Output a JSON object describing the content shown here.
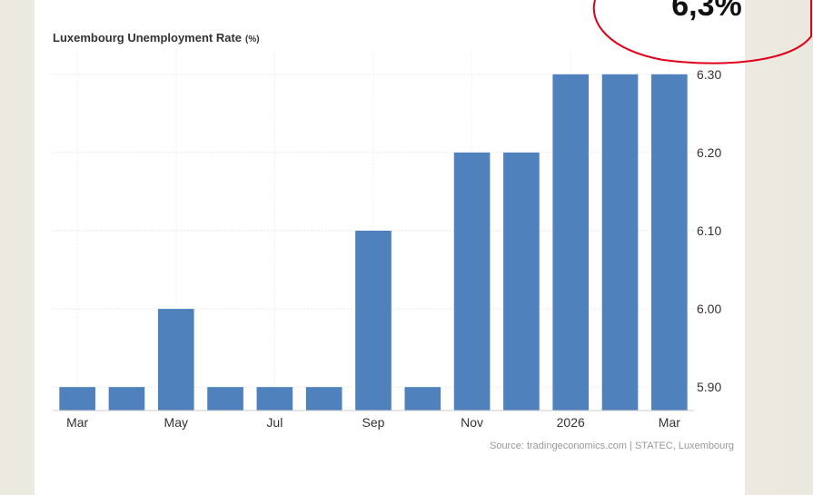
{
  "chart_data": {
    "type": "bar",
    "title": "Luxembourg Unemployment Rate",
    "title_unit": "(%)",
    "x": [
      "2025-03",
      "2025-04",
      "2025-05",
      "2025-06",
      "2025-07",
      "2025-08",
      "2025-09",
      "2025-10",
      "2025-11",
      "2025-12",
      "2026-01",
      "2026-02",
      "2026-03"
    ],
    "values": [
      5.9,
      5.9,
      6.0,
      5.9,
      5.9,
      5.9,
      6.1,
      5.9,
      6.2,
      6.2,
      6.3,
      6.3,
      6.3
    ],
    "x_tick_labels": [
      "Mar",
      "May",
      "Jul",
      "Sep",
      "Nov",
      "2026",
      "Mar"
    ],
    "x_tick_months": [
      "2025-03",
      "2025-05",
      "2025-07",
      "2025-09",
      "2025-11",
      "2026-01",
      "2026-03"
    ],
    "y_ticks": [
      5.9,
      6.0,
      6.1,
      6.2,
      6.3
    ],
    "y_tick_labels": [
      "5.90",
      "6.00",
      "6.10",
      "6.20",
      "6.30"
    ],
    "ylim": [
      5.87,
      6.33
    ],
    "y_axis_side": "right",
    "grid": true,
    "bar_color": "#4f81bd",
    "source": "Source: tradingeconomics.com | STATEC, Luxembourg"
  },
  "annotation": {
    "text": "6,3%",
    "outline_color": "#e0001a"
  }
}
